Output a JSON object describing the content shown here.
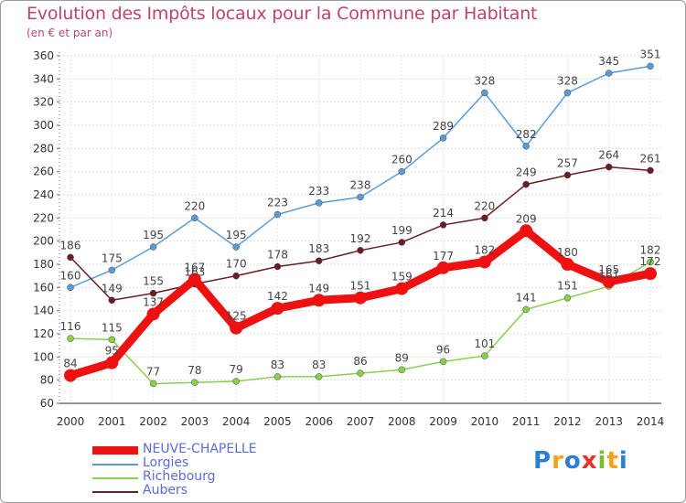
{
  "header": {
    "title": "Evolution des Impôts locaux pour la Commune par Habitant",
    "subtitle": "(en € et par an)"
  },
  "logo": {
    "text": "Proxiti",
    "colors": [
      "#2a7fd4",
      "#f2a31b",
      "#2a7fd4",
      "#e8342b",
      "#7bbf2f",
      "#f2a31b",
      "#2a7fd4"
    ]
  },
  "chart_data": {
    "type": "line",
    "x": [
      "2000",
      "2001",
      "2002",
      "2003",
      "2004",
      "2005",
      "2006",
      "2007",
      "2008",
      "2009",
      "2010",
      "2011",
      "2012",
      "2013",
      "2014"
    ],
    "ylim": [
      60,
      360
    ],
    "yticks": [
      60,
      80,
      100,
      120,
      140,
      160,
      180,
      200,
      220,
      240,
      260,
      280,
      300,
      320,
      340,
      360
    ],
    "grid": true,
    "legend_position": "bottom-left",
    "series": [
      {
        "name": "Lorgies",
        "color": "#5b9bd5",
        "values": [
          160,
          175,
          195,
          220,
          195,
          223,
          233,
          238,
          260,
          289,
          328,
          282,
          328,
          345,
          351
        ]
      },
      {
        "name": "Aubers",
        "color": "#6b1c24",
        "values": [
          186,
          149,
          155,
          163,
          170,
          178,
          183,
          192,
          199,
          214,
          220,
          249,
          257,
          264,
          261
        ]
      },
      {
        "name": "Richebourg",
        "color": "#8ad04a",
        "values": [
          116,
          115,
          77,
          78,
          79,
          83,
          83,
          86,
          89,
          96,
          101,
          141,
          151,
          161,
          182
        ]
      },
      {
        "name": "NEUVE-CHAPELLE",
        "color": "#ee1111",
        "values": [
          84,
          95,
          137,
          167,
          125,
          142,
          149,
          151,
          159,
          177,
          182,
          209,
          180,
          165,
          172
        ]
      }
    ],
    "legend": [
      "NEUVE-CHAPELLE",
      "Lorgies",
      "Richebourg",
      "Aubers"
    ]
  }
}
